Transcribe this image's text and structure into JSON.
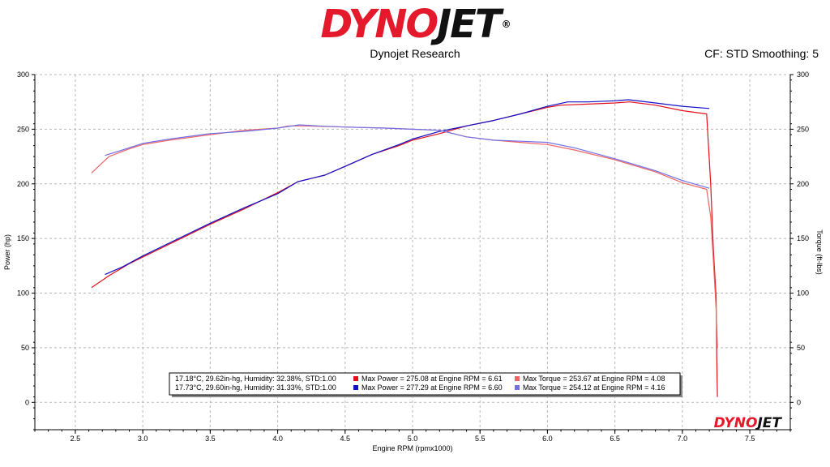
{
  "header": {
    "logo": "DYNOJET",
    "subtitle": "Dynojet Research",
    "cf_smoothing": "CF: STD Smoothing: 5"
  },
  "colors": {
    "run1_power": "#e0101c",
    "run1_torque": "#f06464",
    "run2_power": "#1010c8",
    "run2_torque": "#7070e8",
    "brand_red": "#e4192c"
  },
  "legend": {
    "rows": [
      {
        "conditions": "17.18°C, 29.62in-hg, Humidity: 32.38%, STD:1.00",
        "power": "Max Power = 275.08 at Engine RPM = 6.61",
        "torque": "Max Torque = 253.67 at Engine RPM = 4.08"
      },
      {
        "conditions": "17.73°C, 29.60in-hg, Humidity: 31.33%, STD:1.00",
        "power": "Max Power = 277.29 at Engine RPM = 6.60",
        "torque": "Max Torque = 254.12 at Engine RPM = 4.16"
      }
    ]
  },
  "watermark": "DYNOJET",
  "chart_data": {
    "type": "line",
    "xlabel": "Engine RPM (rpmx1000)",
    "ylabel": "Power (hp)",
    "y2label": "Torque (ft-lbs)",
    "xlim": [
      2.2,
      7.8
    ],
    "ylim": [
      -25,
      300
    ],
    "xticks": [
      "2.5",
      "3.0",
      "3.5",
      "4.0",
      "4.5",
      "5.0",
      "5.5",
      "6.0",
      "6.5",
      "7.0",
      "7.5"
    ],
    "yticks": [
      "0",
      "50",
      "100",
      "150",
      "200",
      "250",
      "300"
    ],
    "grid": true,
    "series": [
      {
        "colorKey": "run1_power",
        "axis": "left",
        "x": [
          2.62,
          2.75,
          2.9,
          3.0,
          3.1,
          3.25,
          3.5,
          3.75,
          4.0,
          4.15,
          4.35,
          4.5,
          4.7,
          4.9,
          5.0,
          5.2,
          5.4,
          5.6,
          5.8,
          6.0,
          6.1,
          6.3,
          6.5,
          6.61,
          6.8,
          7.0,
          7.18,
          7.21,
          7.23,
          7.25,
          7.255,
          7.26
        ],
        "y": [
          105,
          116,
          127,
          133,
          139,
          148,
          163,
          177,
          192,
          202,
          208,
          216,
          227,
          235,
          240,
          246,
          253,
          258,
          264,
          270,
          272,
          273,
          274,
          275,
          272,
          267,
          264,
          200,
          140,
          96,
          40,
          5
        ]
      },
      {
        "colorKey": "run2_power",
        "axis": "left",
        "x": [
          2.72,
          2.85,
          3.0,
          3.2,
          3.5,
          3.75,
          4.0,
          4.15,
          4.35,
          4.5,
          4.7,
          4.9,
          5.0,
          5.2,
          5.4,
          5.6,
          5.8,
          6.0,
          6.15,
          6.3,
          6.5,
          6.6,
          6.8,
          7.0,
          7.2
        ],
        "y": [
          117,
          124,
          134,
          146,
          164,
          178,
          191,
          202,
          208,
          216,
          227,
          236,
          241,
          248,
          253,
          258,
          264,
          271,
          275,
          275,
          276,
          277,
          274,
          271,
          269
        ]
      },
      {
        "colorKey": "run1_torque",
        "axis": "right",
        "x": [
          2.62,
          2.75,
          2.9,
          3.0,
          3.2,
          3.5,
          3.75,
          4.0,
          4.08,
          4.2,
          4.5,
          4.8,
          5.0,
          5.2,
          5.4,
          5.6,
          5.8,
          6.0,
          6.2,
          6.5,
          6.8,
          7.0,
          7.18,
          7.21,
          7.23,
          7.25,
          7.26
        ],
        "y": [
          210,
          225,
          232,
          236,
          240,
          245,
          249,
          251,
          253,
          253,
          252,
          251,
          250,
          249,
          243,
          240,
          238,
          236,
          231,
          222,
          211,
          201,
          195,
          170,
          130,
          85,
          50
        ]
      },
      {
        "colorKey": "run2_torque",
        "axis": "right",
        "x": [
          2.72,
          2.85,
          3.0,
          3.2,
          3.5,
          3.75,
          4.0,
          4.16,
          4.3,
          4.5,
          4.8,
          5.0,
          5.2,
          5.4,
          5.6,
          5.8,
          6.0,
          6.2,
          6.5,
          6.8,
          7.0,
          7.2
        ],
        "y": [
          226,
          231,
          237,
          241,
          246,
          248,
          251,
          254,
          253,
          252,
          251,
          250,
          249,
          243,
          240,
          239,
          238,
          233,
          223,
          212,
          203,
          196
        ]
      }
    ]
  }
}
